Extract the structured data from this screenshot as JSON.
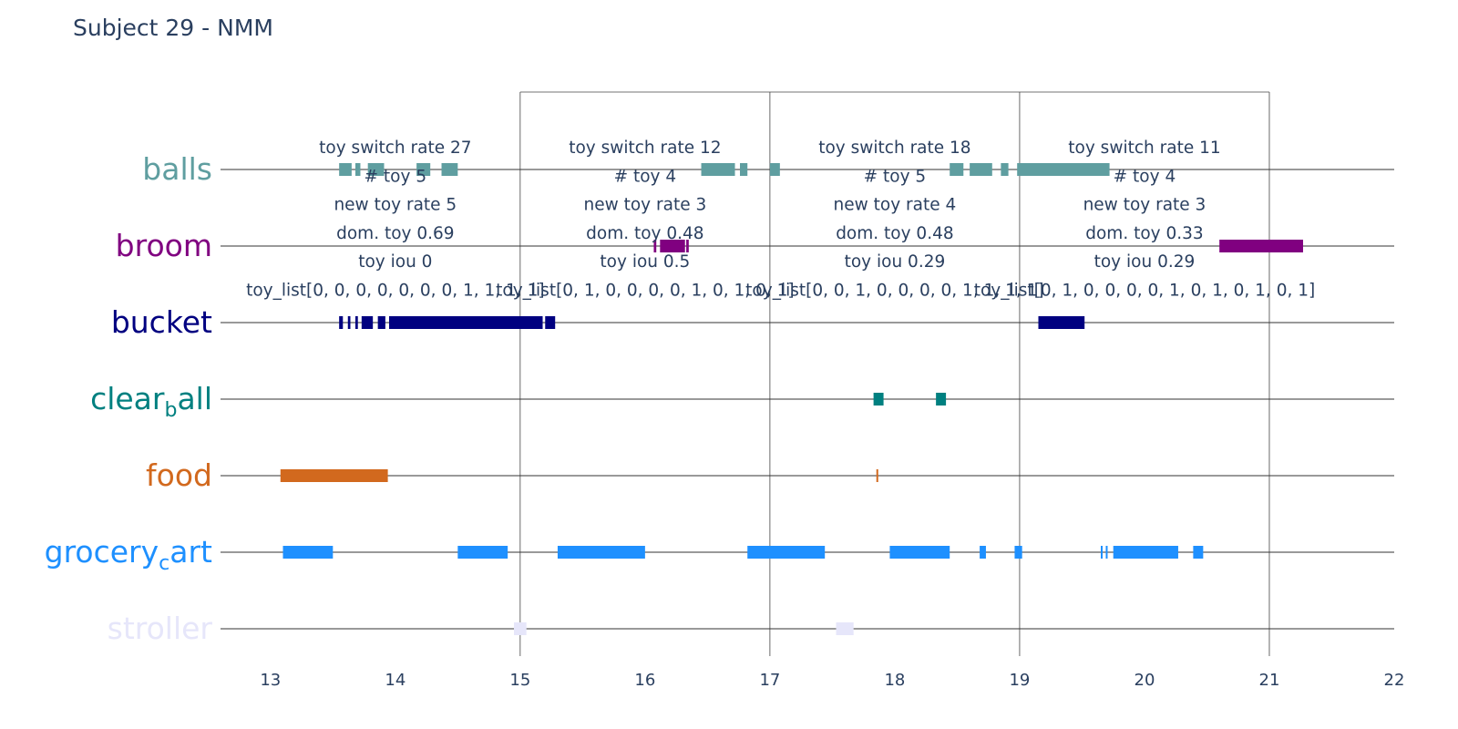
{
  "title": "Subject 29 - NMM",
  "chart_data": {
    "type": "timeline",
    "title": "Subject 29 - NMM",
    "xlim": [
      12.6,
      22
    ],
    "x_ticks": [
      13,
      14,
      15,
      16,
      17,
      18,
      19,
      20,
      21,
      22
    ],
    "grid": false,
    "categories": [
      {
        "name": "balls",
        "label": "balls",
        "sub": null,
        "color": "#5f9ea0"
      },
      {
        "name": "broom",
        "label": "broom",
        "sub": null,
        "color": "#800080"
      },
      {
        "name": "bucket",
        "label": "bucket",
        "sub": null,
        "color": "#000080"
      },
      {
        "name": "clear_ball",
        "label": "clear",
        "sub": "b",
        "tail": "all",
        "color": "#008080"
      },
      {
        "name": "food",
        "label": "food",
        "sub": null,
        "color": "#d2691e"
      },
      {
        "name": "grocery_cart",
        "label": "grocery",
        "sub": "c",
        "tail": "art",
        "color": "#1e90ff"
      },
      {
        "name": "stroller",
        "label": "stroller",
        "sub": null,
        "color": "#e6e6fa"
      }
    ],
    "segments": {
      "balls": [
        [
          13.55,
          13.65
        ],
        [
          13.68,
          13.72
        ],
        [
          13.78,
          13.91
        ],
        [
          14.17,
          14.28
        ],
        [
          14.37,
          14.5
        ],
        [
          16.45,
          16.72
        ],
        [
          16.76,
          16.82
        ],
        [
          17.0,
          17.08
        ],
        [
          18.44,
          18.55
        ],
        [
          18.6,
          18.78
        ],
        [
          18.85,
          18.91
        ],
        [
          18.98,
          19.72
        ]
      ],
      "broom": [
        [
          16.07,
          16.09
        ],
        [
          16.12,
          16.32
        ],
        [
          16.33,
          16.35
        ],
        [
          20.6,
          21.27
        ]
      ],
      "bucket": [
        [
          13.55,
          13.58
        ],
        [
          13.62,
          13.64
        ],
        [
          13.68,
          13.7
        ],
        [
          13.73,
          13.82
        ],
        [
          13.86,
          13.92
        ],
        [
          13.95,
          15.18
        ],
        [
          15.2,
          15.28
        ],
        [
          19.15,
          19.52
        ]
      ],
      "clear_ball": [
        [
          17.83,
          17.91
        ],
        [
          18.33,
          18.41
        ]
      ],
      "food": [
        [
          13.08,
          13.94
        ]
      ],
      "grocery_cart": [
        [
          13.1,
          13.5
        ],
        [
          14.5,
          14.9
        ],
        [
          15.3,
          16.0
        ],
        [
          16.82,
          17.44
        ],
        [
          17.96,
          18.44
        ],
        [
          18.68,
          18.73
        ],
        [
          18.96,
          19.02
        ],
        [
          19.65,
          19.66
        ],
        [
          19.69,
          19.7
        ],
        [
          19.75,
          20.27
        ],
        [
          20.39,
          20.47
        ]
      ],
      "stroller": [
        [
          14.95,
          15.05
        ],
        [
          17.53,
          17.67
        ]
      ]
    },
    "point_marks": {
      "food": [
        17.86
      ]
    },
    "window_boundaries": [
      15.0,
      17.0,
      19.0,
      21.0
    ],
    "annotations": [
      {
        "x": 14.0,
        "lines": [
          "toy switch rate 27",
          "# toy 5",
          "new toy rate 5",
          "dom. toy 0.69",
          "toy iou 0",
          "toy_list[0, 0, 0, 0, 0, 0, 0, 1, 1, 1, 1]"
        ]
      },
      {
        "x": 16.0,
        "lines": [
          "toy switch rate 12",
          "# toy 4",
          "new toy rate 3",
          "dom. toy 0.48",
          "toy iou 0.5",
          "toy_list[0, 1, 0, 0, 0, 0, 1, 0, 1, 0, 1]"
        ]
      },
      {
        "x": 18.0,
        "lines": [
          "toy switch rate 18",
          "# toy 5",
          "new toy rate 4",
          "dom. toy 0.48",
          "toy iou 0.29",
          "toy_list[0, 0, 1, 0, 0, 0, 0, 1, 1, 1, 1]"
        ]
      },
      {
        "x": 20.0,
        "lines": [
          "toy switch rate 11",
          "# toy 4",
          "new toy rate 3",
          "dom. toy 0.33",
          "toy iou 0.29",
          "toy_list[0, 1, 0, 0, 0, 0, 1, 0, 1, 0, 1, 0, 1]"
        ]
      }
    ]
  }
}
